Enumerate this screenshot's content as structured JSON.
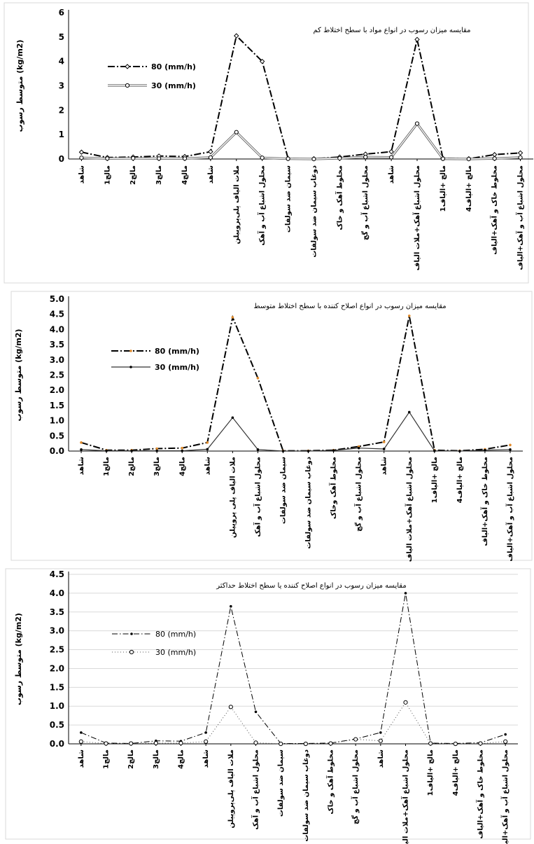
{
  "chart_data": [
    {
      "type": "line",
      "title": "مقایسه میزان رسوب در انواع مواد با سطح اختلاط کم",
      "ylabel": "متوسط رسوب  (kg/m2)",
      "xlabel": "",
      "ylim": [
        0,
        6
      ],
      "yticks": [
        "0",
        "1",
        "2",
        "3",
        "4",
        "5",
        "6"
      ],
      "grid": false,
      "legend_position": "upper-left",
      "categories": [
        "شاهد",
        "1مالچ",
        "2مالچ",
        "3مالچ",
        "4مالچ",
        "شاهد",
        "ملات الیاف پلی‌پروپیلن",
        "محلول اشباع آب و آهک",
        "سیمان ضد سولفات",
        "دوغاب سیمان ضد سولفات",
        "مخلوط آهک و خاک",
        "محلول اشباع آب و گچ",
        "شاهد",
        "محلول اشباع آهک+ملات الیاف",
        "1مالچ +الیاف",
        "4مالچ +الیاف",
        "مخلوط خاک و آهک+الیاف",
        "محلول اشباع آب و آهک+الیاف"
      ],
      "series": [
        {
          "name": "80 (mm/h)",
          "color": "#000000",
          "values": [
            0.28,
            0.06,
            0.08,
            0.12,
            0.1,
            0.3,
            5.05,
            4.0,
            0.02,
            0.01,
            0.08,
            0.2,
            0.3,
            4.9,
            0.03,
            0.01,
            0.18,
            0.25
          ]
        },
        {
          "name": "30 (mm/h)",
          "color": "#808080",
          "values": [
            0.05,
            0.02,
            0.03,
            0.02,
            0.02,
            0.06,
            1.1,
            0.05,
            0.01,
            0.0,
            0.03,
            0.08,
            0.07,
            1.45,
            0.01,
            0.0,
            0.02,
            0.06
          ]
        }
      ]
    },
    {
      "type": "line",
      "title": "مقایسه میزان رسوب در انواع اصلاح کننده  با سطح اختلاط متوسط",
      "ylabel": "متوسط رسوب  (kg/m2)",
      "xlabel": "",
      "ylim": [
        0,
        5
      ],
      "yticks": [
        "0.0",
        "0.5",
        "1.0",
        "1.5",
        "2.0",
        "2.5",
        "3.0",
        "3.5",
        "4.0",
        "4.5",
        "5.0"
      ],
      "grid": false,
      "legend_position": "upper-left",
      "categories": [
        "شاهد",
        "1مالچ",
        "2مالچ",
        "3مالچ",
        "4مالچ",
        "شاهد",
        "ملات الیاف پلی پروپیلن",
        "محلول اشباع آب و آهک",
        "سیمان ضد سولفات",
        "دوغاب سیمان ضد سولفات",
        "مخلوط آهک وخاک",
        "محلول اشباع آب و گچ",
        "شاهد",
        "محلول اشباع آهک+ملات الیاف",
        "1مالچ +الیاف",
        "4مالچ +الیاف",
        "مخلوط خاک و آهک+الیاف",
        "محلول اشباع آب و آهک+الیاف"
      ],
      "series": [
        {
          "name": "80 (mm/h)",
          "color": "#000000",
          "values": [
            0.28,
            0.03,
            0.03,
            0.08,
            0.1,
            0.28,
            4.4,
            2.4,
            0.01,
            0.01,
            0.03,
            0.15,
            0.3,
            4.45,
            0.03,
            0.01,
            0.06,
            0.2
          ]
        },
        {
          "name": "30 (mm/h)",
          "color": "#333333",
          "values": [
            0.05,
            0.01,
            0.01,
            0.01,
            0.01,
            0.06,
            1.1,
            0.05,
            0.0,
            0.0,
            0.02,
            0.1,
            0.07,
            1.28,
            0.01,
            0.0,
            0.03,
            0.05
          ]
        }
      ]
    },
    {
      "type": "line",
      "title": "مقایسه میزان رسوب در انواع اصلاح کننده یا سطح اختلاط حداکثر",
      "ylabel": "متوسط رسوب  (kg/m2)",
      "xlabel": "",
      "ylim": [
        0,
        4.5
      ],
      "yticks": [
        "0.0",
        "0.5",
        "1.0",
        "1.5",
        "2.0",
        "2.5",
        "3.0",
        "3.5",
        "4.0",
        "4.5"
      ],
      "grid": true,
      "legend_position": "upper-left",
      "categories": [
        "شاهد",
        "1مالچ",
        "2مالچ",
        "3مالچ",
        "4مالچ",
        "شاهد",
        "ملات الیاف پلی‌پروپیلن",
        "محلول اشباع آب و آهک",
        "سیمان ضد سولفات",
        "دوغاب سیمان ضد سولفات",
        "مخلوط آهک و خاک",
        "محلول اشباع آب و گچ",
        "شاهد",
        "محلول اشباع آهک+ملات الیاف",
        "1مالچ +الیاف",
        "4مالچ +الیاف",
        "مخلوط خاک و آهک+الیاف",
        "محلول اشباع آب و آهک+الیاف"
      ],
      "series": [
        {
          "name": "80 (mm/h)",
          "color": "#000000",
          "values": [
            0.3,
            0.02,
            0.01,
            0.08,
            0.07,
            0.3,
            3.65,
            0.85,
            0.01,
            0.01,
            0.02,
            0.13,
            0.3,
            4.0,
            0.02,
            0.01,
            0.03,
            0.25
          ]
        },
        {
          "name": "30 (mm/h)",
          "color": "#555555",
          "values": [
            0.06,
            0.01,
            0.01,
            0.02,
            0.02,
            0.06,
            0.98,
            0.03,
            0.0,
            0.0,
            0.01,
            0.12,
            0.08,
            1.1,
            0.01,
            0.0,
            0.01,
            0.06
          ]
        }
      ]
    }
  ]
}
